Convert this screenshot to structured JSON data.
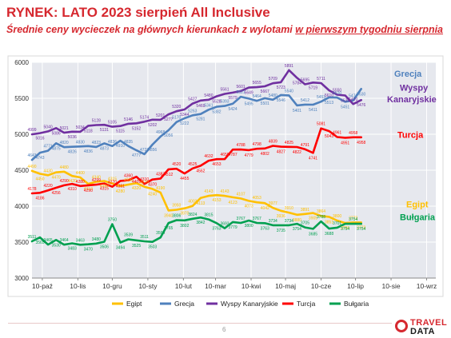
{
  "header": {
    "title": "RYNEK: LATO 2023 sierpień All Inclusive",
    "subtitle_main": "Średnie ceny wycieczek na głównych kierunkach z wylotami ",
    "subtitle_underlined": "w pierwszym tygodniu sierpnia"
  },
  "footer": {
    "page_number": "6",
    "logo_line1": "TRAVEL",
    "logo_line2": "DATA"
  },
  "colors": {
    "accent": "#d6282f",
    "plot_bg": "#e6e8ee",
    "grid": "#ffffff"
  },
  "chart_data": {
    "type": "line",
    "title": "RYNEK: LATO 2023 sierpień All Inclusive",
    "ylim": [
      3000,
      6000
    ],
    "yticks": [
      3000,
      3500,
      4000,
      4500,
      5000,
      5500,
      6000
    ],
    "xlim": [
      "2022-10-01",
      "2023-09-18"
    ],
    "xticks": [
      "10-paź",
      "10-lis",
      "10-gru",
      "10-sty",
      "10-lut",
      "10-mar",
      "10-kwi",
      "10-maj",
      "10-cze",
      "10-lip",
      "10-sie",
      "10-wrz"
    ],
    "grid": true,
    "legend_position": "bottom",
    "series": [
      {
        "name": "Egipt",
        "color": "#ffc000",
        "start": "2022-10-01",
        "step_days": 7,
        "values": [
          4490,
          4450,
          4430,
          4470,
          4480,
          4420,
          4400,
          4310,
          4340,
          4350,
          4315,
          4280,
          4300,
          4320,
          4270,
          4240,
          4190,
          3940,
          3950,
          3970,
          4003,
          4113,
          4143,
          4153,
          4143,
          4123,
          4107,
          4073,
          4053,
          4042,
          3977,
          3936,
          3910,
          3880,
          3891,
          3905,
          3864,
          3851,
          3800,
          3766,
          3773,
          3773
        ],
        "point_labels": [
          "4490",
          "4450",
          "4430",
          "4470",
          "4480",
          "4420",
          "4400",
          "4310",
          "4340",
          "4350",
          "4315",
          "4280",
          "4300",
          "4320",
          "4270",
          "4240",
          "4190",
          "3940",
          "3950",
          "3970",
          "4003",
          "4113",
          "4143",
          "4153",
          "4143",
          "4123",
          "4107",
          "4073",
          "4053",
          "4042",
          "3977",
          "3936",
          "3910",
          "3880",
          "3891",
          "3905",
          "3864",
          "3851",
          "3800",
          "3766",
          "3773",
          "3773"
        ],
        "end_label": "Egipt"
      },
      {
        "name": "Grecja",
        "color": "#4f81bd",
        "start": "2022-10-01",
        "step_days": 7,
        "values": [
          4643,
          4743,
          4771,
          4875,
          4820,
          4826,
          4830,
          4836,
          4823,
          4873,
          4836,
          4910,
          4835,
          4777,
          4723,
          4856,
          4968,
          5056,
          5170,
          5222,
          5263,
          5281,
          5341,
          5382,
          5393,
          5424,
          5521,
          5495,
          5464,
          5501,
          5480,
          5546,
          5540,
          5401,
          5412,
          5411,
          5453,
          5513,
          5510,
          5451,
          5471,
          5630
        ],
        "point_labels": [
          "4643",
          "4743",
          "4771",
          "4875",
          "4820",
          "4826",
          "4830",
          "4836",
          "4823",
          "4873",
          "4836",
          "4910",
          "4835",
          "4777",
          "4723",
          "4856",
          "4968",
          "5056",
          "5170",
          "5222",
          "5263",
          "5281",
          "5341",
          "5382",
          "5393",
          "5424",
          "5521",
          "5495",
          "5464",
          "5501",
          "5480",
          "5546",
          "5540",
          "5401",
          "5412",
          "5411",
          "5453",
          "5513",
          "5510",
          "5451",
          "5471",
          "5630"
        ],
        "end_label": "Grecja"
      },
      {
        "name": "Wyspy Kanaryjskie",
        "color": "#7030a0",
        "start": "2022-10-01",
        "step_days": 7,
        "values": [
          4999,
          5016,
          5040,
          5086,
          5021,
          5036,
          5034,
          5118,
          5128,
          5131,
          5105,
          5115,
          5146,
          5152,
          5174,
          5202,
          5201,
          5277,
          5320,
          5344,
          5427,
          5469,
          5480,
          5528,
          5561,
          5579,
          5601,
          5649,
          5655,
          5667,
          5709,
          5723,
          5891,
          5784,
          5695,
          5719,
          5711,
          5610,
          5550,
          5539,
          5420,
          5476
        ],
        "point_labels": [
          "4999",
          "5016",
          "5040",
          "5086",
          "5021",
          "5036",
          "5034",
          "5118",
          "5128",
          "5131",
          "5105",
          "5115",
          "5146",
          "5152",
          "5174",
          "5202",
          "5201",
          "5277",
          "5320",
          "5344",
          "5427",
          "5469",
          "5480",
          "5528",
          "5561",
          "5579",
          "5601",
          "5649",
          "5655",
          "5667",
          "5709",
          "5723",
          "5891",
          "5784",
          "5695",
          "5719",
          "5711",
          "5610",
          "5550",
          "5539",
          "5420",
          "5476"
        ],
        "end_label": "Wyspy Kanaryjskie"
      },
      {
        "name": "Turcja",
        "color": "#ff0000",
        "start": "2022-10-01",
        "step_days": 7,
        "values": [
          4178,
          4186,
          4220,
          4256,
          4290,
          4310,
          4280,
          4290,
          4299,
          4315,
          4270,
          4351,
          4360,
          4409,
          4310,
          4370,
          4383,
          4512,
          4520,
          4455,
          4525,
          4562,
          4632,
          4653,
          4655,
          4787,
          4788,
          4779,
          4798,
          4802,
          4839,
          4827,
          4825,
          4822,
          4791,
          4741,
          5081,
          5043,
          4961,
          4951,
          4958,
          4958
        ],
        "point_labels": [
          "4178",
          "4186",
          "4220",
          "4256",
          "4290",
          "4310",
          "4280",
          "4290",
          "4299",
          "4315",
          "4270",
          "4351",
          "4360",
          "4409",
          "4310",
          "4370",
          "4383",
          "4512",
          "4520",
          "4455",
          "4525",
          "4562",
          "4632",
          "4653",
          "4655",
          "4787",
          "4788",
          "4779",
          "4798",
          "4802",
          "4839",
          "4827",
          "4825",
          "4822",
          "4791",
          "4741",
          "5081",
          "5043",
          "4961",
          "4951",
          "4958",
          "4958"
        ],
        "end_label": "Turcja"
      },
      {
        "name": "Bułgaria",
        "color": "#00a050",
        "start": "2022-10-01",
        "step_days": 7,
        "values": [
          3511,
          3565,
          3465,
          3530,
          3464,
          3483,
          3463,
          3470,
          3480,
          3506,
          3750,
          3494,
          3539,
          3525,
          3511,
          3503,
          3564,
          3765,
          3806,
          3802,
          3824,
          3842,
          3815,
          3763,
          3693,
          3779,
          3767,
          3800,
          3767,
          3763,
          3734,
          3735,
          3734,
          3754,
          3705,
          3685,
          3788,
          3688,
          3701,
          3754,
          3754,
          3754
        ],
        "point_labels": [
          "3511",
          "3565",
          "3465",
          "3530",
          "3464",
          "3483",
          "3463",
          "3470",
          "3480",
          "3506",
          "3750",
          "3494",
          "3539",
          "3525",
          "3511",
          "3503",
          "3564",
          "3765",
          "3806",
          "3802",
          "3824",
          "3842",
          "3815",
          "3763",
          "3693",
          "3779",
          "3767",
          "3800",
          "3767",
          "3763",
          "3734",
          "3735",
          "3734",
          "3754",
          "3705",
          "3685",
          "3788",
          "3688",
          "3701",
          "3754",
          "3754",
          "3754"
        ],
        "end_label": "Bułgaria"
      }
    ]
  }
}
